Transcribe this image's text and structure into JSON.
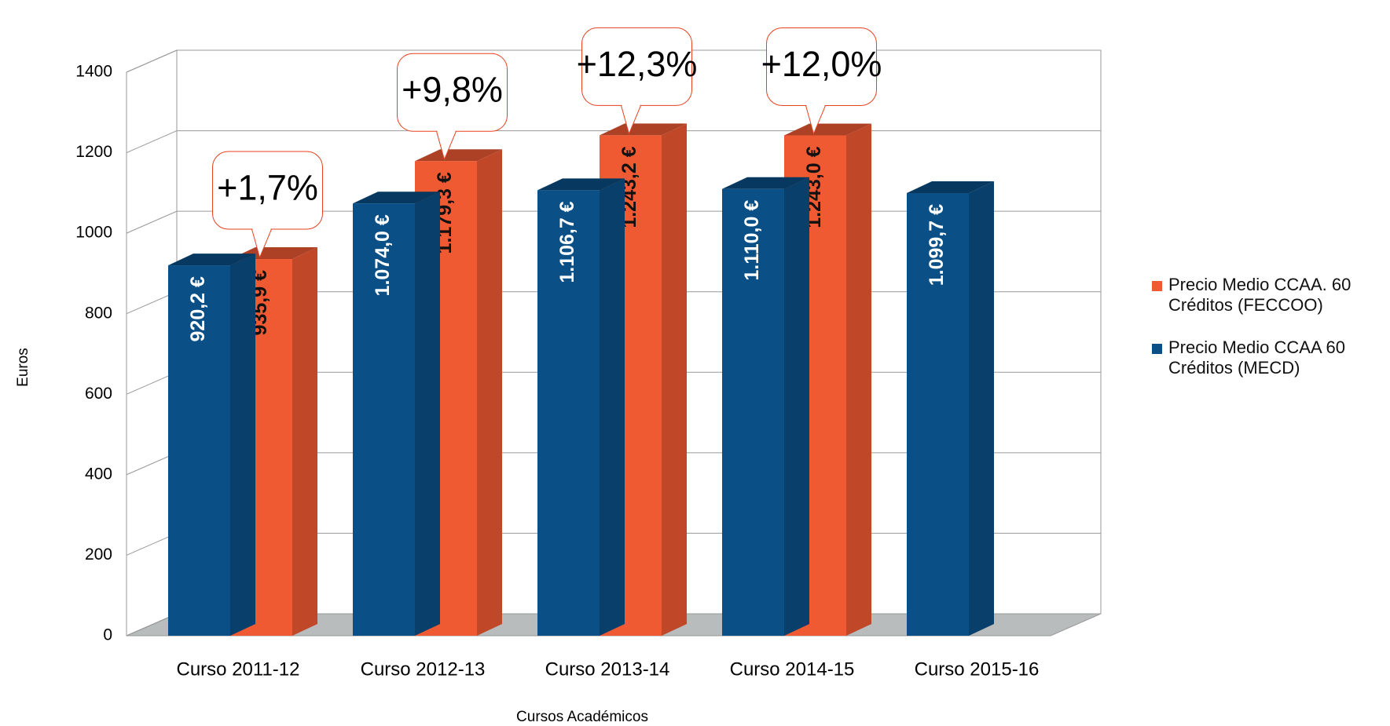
{
  "chart_data": {
    "type": "bar3d",
    "x_label": "Cursos Académicos",
    "y_label": "Euros",
    "categories": [
      "Curso 2011-12",
      "Curso 2012-13",
      "Curso 2013-14",
      "Curso 2014-15",
      "Curso 2015-16"
    ],
    "series": [
      {
        "name": "Precio Medio CCAA. 60 Créditos (FECCOO)",
        "color": "#f05a33",
        "values": [
          935.9,
          1179.3,
          1243.2,
          1243.0,
          null
        ],
        "value_labels": [
          "935,9 €",
          "1.179,3 €",
          "1.243,2 €",
          "1.243,0 €",
          null
        ]
      },
      {
        "name": "Precio Medio CCAA 60 Créditos (MECD)",
        "color": "#0a4f86",
        "values": [
          920.2,
          1074.0,
          1106.7,
          1110.0,
          1099.7
        ],
        "value_labels": [
          "920,2 €",
          "1.074,0 €",
          "1.106,7 €",
          "1.110,0 €",
          "1.099,7 €"
        ]
      }
    ],
    "annotations": [
      "+1,7%",
      "+9,8%",
      "+12,3%",
      "+12,0%",
      null
    ],
    "ylim": [
      0,
      1400
    ],
    "yticks": [
      0,
      200,
      400,
      600,
      800,
      1000,
      1200,
      1400
    ],
    "grid": true
  }
}
